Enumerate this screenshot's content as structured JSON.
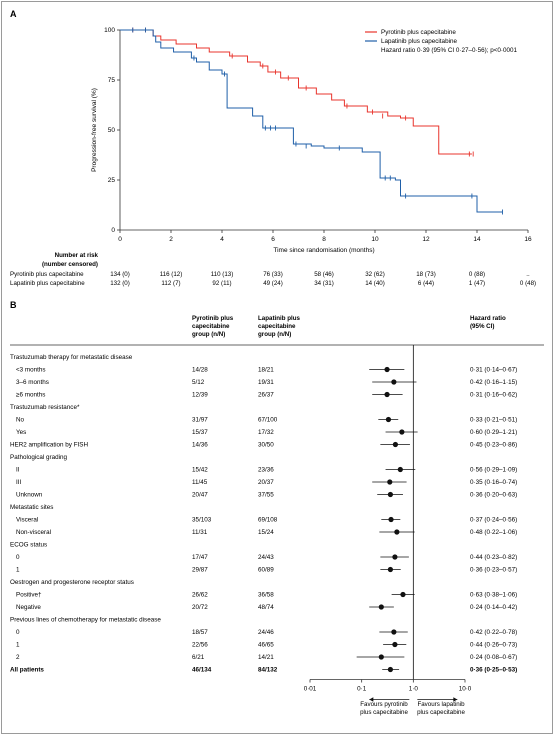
{
  "panel_a": {
    "label": "A"
  },
  "panel_b": {
    "label": "B"
  },
  "risk_table": {
    "title": [
      "Number at risk",
      "(number censored)"
    ],
    "rows": [
      {
        "name": "Pyrotinib plus capecitabine",
        "values": [
          "134 (0)",
          "116 (12)",
          "110 (13)",
          "76 (33)",
          "58 (46)",
          "32 (62)",
          "18 (73)",
          "0 (88)",
          ".."
        ]
      },
      {
        "name": "Lapatinib plus capecitabine",
        "values": [
          "132 (0)",
          "112 (7)",
          "92 (11)",
          "49 (24)",
          "34 (31)",
          "14 (40)",
          "6 (44)",
          "1 (47)",
          "0 (48)"
        ]
      }
    ]
  },
  "forest_headers": {
    "col1": [
      "Pyrotinib plus",
      "capecitabine",
      "group (n/N)"
    ],
    "col2": [
      "Lapatinib plus",
      "capecitabine",
      "group (n/N)"
    ],
    "col3": [
      "Hazard ratio",
      "(95% CI)"
    ]
  },
  "forest_footer": {
    "left": [
      "Favours  pyrotinib",
      "plus capecitabine"
    ],
    "right": [
      "Favours lapatinib",
      "plus capecitabine"
    ]
  },
  "chart_data": [
    {
      "type": "line",
      "subtype": "kaplan-meier step",
      "xlabel": "Time since randomisation (months)",
      "ylabel": "Progression-free survival (%)",
      "xlim": [
        0,
        16
      ],
      "ylim": [
        0,
        100
      ],
      "xticks": [
        "0",
        "2",
        "4",
        "6",
        "8",
        "10",
        "12",
        "14",
        "16"
      ],
      "yticks": [
        "0",
        "25",
        "50",
        "75",
        "100"
      ],
      "legend_position": "top-right",
      "annotation": "Hazard ratio 0·39 (95% CI 0·27–0·56); p<0·0001",
      "series": [
        {
          "name": "Pyrotinib plus capecitabine",
          "color": "#e8342c",
          "x": [
            0,
            1.3,
            1.6,
            2.2,
            3.0,
            3.5,
            4.3,
            5.0,
            5.5,
            5.8,
            6.3,
            7.0,
            7.7,
            8.3,
            8.8,
            9.7,
            10.5,
            11.0,
            11.5,
            12.5,
            13.8
          ],
          "y": [
            100,
            97,
            95,
            93,
            91,
            89,
            87,
            84,
            82,
            79,
            76,
            71,
            68,
            65,
            62,
            59,
            57,
            56,
            52,
            38,
            38
          ],
          "censored_x": [
            0.5,
            1.0,
            4.4,
            5.6,
            6.1,
            6.6,
            7.3,
            8.9,
            9.9,
            10.3,
            11.2,
            13.7,
            13.85
          ],
          "censored_y": [
            100,
            100,
            87,
            82,
            79,
            76,
            71,
            62,
            59,
            57,
            56,
            38,
            38
          ]
        },
        {
          "name": "Lapatinib plus capecitabine",
          "color": "#1f5fa8",
          "x": [
            0,
            1.3,
            1.4,
            1.6,
            2.1,
            2.8,
            3.0,
            3.5,
            4.0,
            4.2,
            5.2,
            5.6,
            6.8,
            7.5,
            8.0,
            9.5,
            10.2,
            10.8,
            11.0,
            13.8,
            14.0,
            15.0
          ],
          "y": [
            100,
            97,
            94,
            91,
            89,
            86,
            84,
            80,
            78,
            61,
            57,
            51,
            43,
            42,
            41,
            39,
            26,
            25,
            17,
            17,
            9,
            9
          ],
          "censored_x": [
            0.5,
            1.0,
            2.9,
            4.1,
            5.7,
            5.9,
            6.1,
            6.9,
            7.3,
            8.6,
            10.4,
            10.6,
            11.2,
            13.8,
            15.0
          ],
          "censored_y": [
            100,
            100,
            86,
            78,
            51,
            51,
            51,
            43,
            42,
            41,
            26,
            26,
            17,
            17,
            9
          ]
        }
      ]
    },
    {
      "type": "forest",
      "xscale": "log",
      "xlim": [
        0.01,
        10
      ],
      "xticks": [
        "0·01",
        "0·1",
        "1·0",
        "10·0"
      ],
      "reference_line": 1.0,
      "rows": [
        {
          "label": "Trastuzumab therapy for metastatic disease",
          "header": true
        },
        {
          "label": "<3 months",
          "indent": true,
          "pyro": "14/28",
          "lapa": "18/21",
          "hr": 0.31,
          "lo": 0.14,
          "hi": 0.67,
          "hr_text": "0·31 (0·14–0·67)"
        },
        {
          "label": "3–6 months",
          "indent": true,
          "pyro": "5/12",
          "lapa": "19/31",
          "hr": 0.42,
          "lo": 0.16,
          "hi": 1.15,
          "hr_text": "0·42 (0·16–1·15)"
        },
        {
          "label": "≥6 months",
          "indent": true,
          "pyro": "12/39",
          "lapa": "26/37",
          "hr": 0.31,
          "lo": 0.16,
          "hi": 0.62,
          "hr_text": "0·31 (0·16–0·62)"
        },
        {
          "label": "Trastuzumab resistance*",
          "header": true
        },
        {
          "label": "No",
          "indent": true,
          "pyro": "31/97",
          "lapa": "67/100",
          "hr": 0.33,
          "lo": 0.21,
          "hi": 0.51,
          "hr_text": "0·33 (0·21–0·51)"
        },
        {
          "label": "Yes",
          "indent": true,
          "pyro": "15/37",
          "lapa": "17/32",
          "hr": 0.6,
          "lo": 0.29,
          "hi": 1.21,
          "hr_text": "0·60 (0·29–1·21)"
        },
        {
          "label": "HER2 amplification by FISH",
          "pyro": "14/36",
          "lapa": "30/50",
          "hr": 0.45,
          "lo": 0.23,
          "hi": 0.86,
          "hr_text": "0·45 (0·23–0·86)"
        },
        {
          "label": "Pathological grading",
          "header": true
        },
        {
          "label": "II",
          "indent": true,
          "pyro": "15/42",
          "lapa": "23/36",
          "hr": 0.56,
          "lo": 0.29,
          "hi": 1.09,
          "hr_text": "0·56 (0·29–1·09)"
        },
        {
          "label": "III",
          "indent": true,
          "pyro": "11/45",
          "lapa": "20/37",
          "hr": 0.35,
          "lo": 0.16,
          "hi": 0.74,
          "hr_text": "0·35 (0·16–0·74)"
        },
        {
          "label": "Unknown",
          "indent": true,
          "pyro": "20/47",
          "lapa": "37/55",
          "hr": 0.36,
          "lo": 0.2,
          "hi": 0.63,
          "hr_text": "0·36 (0·20–0·63)"
        },
        {
          "label": "Metastatic sites",
          "header": true
        },
        {
          "label": "Visceral",
          "indent": true,
          "pyro": "35/103",
          "lapa": "69/108",
          "hr": 0.37,
          "lo": 0.24,
          "hi": 0.56,
          "hr_text": "0·37 (0·24–0·56)"
        },
        {
          "label": "Non-visceral",
          "indent": true,
          "pyro": "11/31",
          "lapa": "15/24",
          "hr": 0.48,
          "lo": 0.22,
          "hi": 1.06,
          "hr_text": "0·48 (0·22–1·06)"
        },
        {
          "label": "ECOG status",
          "header": true
        },
        {
          "label": "0",
          "indent": true,
          "pyro": "17/47",
          "lapa": "24/43",
          "hr": 0.44,
          "lo": 0.23,
          "hi": 0.82,
          "hr_text": "0·44 (0·23–0·82)"
        },
        {
          "label": "1",
          "indent": true,
          "pyro": "29/87",
          "lapa": "60/89",
          "hr": 0.36,
          "lo": 0.23,
          "hi": 0.57,
          "hr_text": "0·36 (0·23–0·57)"
        },
        {
          "label": "Oestrogen and progesterone receptor status",
          "header": true
        },
        {
          "label": "Positive†",
          "indent": true,
          "pyro": "26/62",
          "lapa": "36/58",
          "hr": 0.63,
          "lo": 0.38,
          "hi": 1.06,
          "hr_text": "0·63 (0·38–1·06)"
        },
        {
          "label": "Negative",
          "indent": true,
          "pyro": "20/72",
          "lapa": "48/74",
          "hr": 0.24,
          "lo": 0.14,
          "hi": 0.42,
          "hr_text": "0·24 (0·14–0·42)"
        },
        {
          "label": "Previous lines of chemotherapy for metastatic disease",
          "header": true
        },
        {
          "label": "0",
          "indent": true,
          "pyro": "18/57",
          "lapa": "24/46",
          "hr": 0.42,
          "lo": 0.22,
          "hi": 0.78,
          "hr_text": "0·42 (0·22–0·78)"
        },
        {
          "label": "1",
          "indent": true,
          "pyro": "22/56",
          "lapa": "46/65",
          "hr": 0.44,
          "lo": 0.26,
          "hi": 0.73,
          "hr_text": "0·44 (0·26–0·73)"
        },
        {
          "label": "2",
          "indent": true,
          "pyro": "6/21",
          "lapa": "14/21",
          "hr": 0.24,
          "lo": 0.08,
          "hi": 0.67,
          "hr_text": "0·24 (0·08–0·67)"
        },
        {
          "label": "All patients",
          "bold": true,
          "pyro": "46/134",
          "lapa": "84/132",
          "hr": 0.36,
          "lo": 0.25,
          "hi": 0.53,
          "hr_text": "0·36 (0·25–0·53)"
        }
      ]
    }
  ]
}
